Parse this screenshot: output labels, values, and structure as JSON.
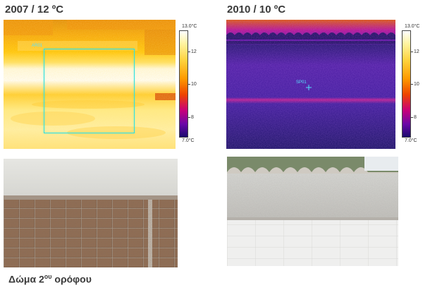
{
  "left_panel": {
    "title": "2007 / 12 ºC",
    "scale_max": "13.0°C",
    "scale_min": "7.0°C",
    "ticks": [
      "12",
      "10",
      "8"
    ],
    "roi_label": "AR01"
  },
  "right_panel": {
    "title": "2010 / 10 ºC",
    "scale_max": "13.0°C",
    "scale_min": "7.0°C",
    "ticks": [
      "12",
      "10",
      "8"
    ],
    "spot_label": "SP01"
  },
  "caption": {
    "text_before": "Δώμα 2",
    "superscript": "ου",
    "text_after": " ορόφου"
  },
  "colors": {
    "title_text": "#3a3a3a",
    "roi_outline": "#2ee0e0"
  }
}
